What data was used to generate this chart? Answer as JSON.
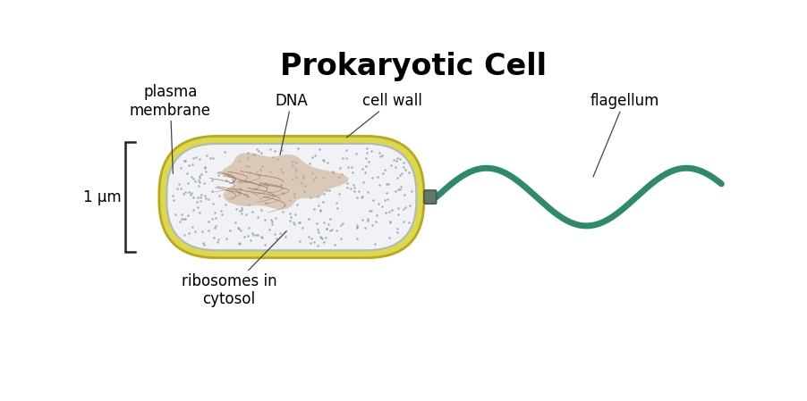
{
  "title": "Prokaryotic Cell",
  "title_fontsize": 24,
  "title_fontweight": "bold",
  "bg_color": "#ffffff",
  "cell_wall_color": "#ddd84a",
  "cell_wall_outline": "#b8a820",
  "membrane_color": "#e8edf0",
  "membrane_outline": "#b0b8c0",
  "cytoplasm_color": "#f0f2f5",
  "dna_color": "#c9a888",
  "dna_outline": "#9a7055",
  "flagellum_color": "#2e8b6a",
  "flagellum_lw": 5,
  "ribosome_dot_color": "#8899a8",
  "label_fontsize": 12,
  "scale_bar_color": "#222222",
  "scale_label": "1 μm",
  "connector_color": "#607868",
  "connector_outline": "#405048",
  "labels": {
    "plasma_membrane": "plasma\nmembrane",
    "DNA": "DNA",
    "cell_wall": "cell wall",
    "flagellum": "flagellum",
    "ribosomes": "ribosomes in\ncytosol"
  }
}
